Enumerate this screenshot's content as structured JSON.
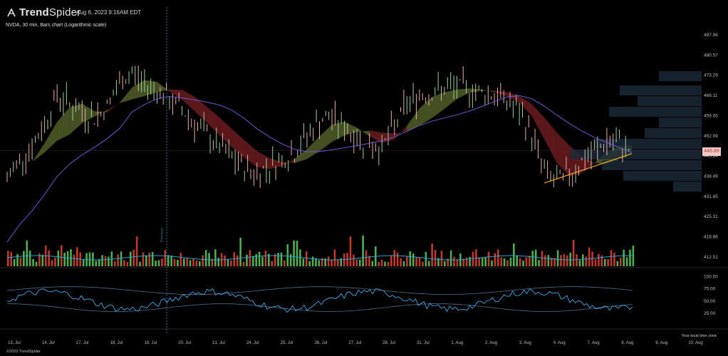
{
  "header": {
    "brand_main": "Trend",
    "brand_light": "Spider",
    "datetime": "Aug 6, 2023 9:16AM EDT",
    "chart_desc": "NVDA, 30 min, Bars chart (Logarithmic scale)"
  },
  "price_badge": "446.89",
  "footer": {
    "timezone_note": "Your local time zone",
    "copyright": "©2023 TrendSpider"
  },
  "session_marker": "Premium",
  "colors": {
    "background": "#000000",
    "up_bar": "#4caf50",
    "down_bar": "#c0392b",
    "cloud_bull": "#5b6b2e",
    "cloud_bear": "#7a1f22",
    "ma_purple": "#6a5acd",
    "ma_orange": "#f5a623",
    "volume_ma": "#29a3d6",
    "oscillator": "#3da9e6"
  },
  "chart_data": {
    "type": "line",
    "symbol": "NVDA",
    "interval": "30 min",
    "scale": "log",
    "price_axis_ticks": [
      "487.96",
      "480.57",
      "473.29",
      "466.11",
      "459.05",
      "452.09",
      "445.24",
      "438.49",
      "431.85",
      "425.31",
      "418.86",
      "412.51"
    ],
    "oscillator_ticks": [
      "100.00",
      "75.00",
      "50.00",
      "25.00"
    ],
    "x_tick_labels": [
      "13. Jul",
      "14. Jul",
      "17. Jul",
      "18. Jul",
      "19. Jul",
      "20. Jul",
      "21. Jul",
      "24. Jul",
      "25. Jul",
      "26. Jul",
      "27. Jul",
      "28. Jul",
      "31. Jul",
      "1. Aug",
      "2. Aug",
      "3. Aug",
      "4. Aug",
      "7. Aug",
      "8. Aug",
      "9. Aug",
      "10. Aug"
    ],
    "last_price": 446.89,
    "series": [
      {
        "name": "",
        "values": [
          437,
          444,
          448,
          456,
          466,
          463,
          460,
          458,
          462,
          470,
          474,
          470,
          468,
          464,
          461,
          456,
          452,
          448,
          444,
          441,
          439,
          442,
          444,
          446,
          452,
          457,
          458,
          455,
          451,
          449,
          448,
          455,
          463,
          466,
          467,
          468,
          469,
          468,
          467,
          466,
          464,
          460,
          452,
          440,
          436,
          439,
          443,
          446,
          450,
          449,
          447
        ]
      }
    ]
  }
}
